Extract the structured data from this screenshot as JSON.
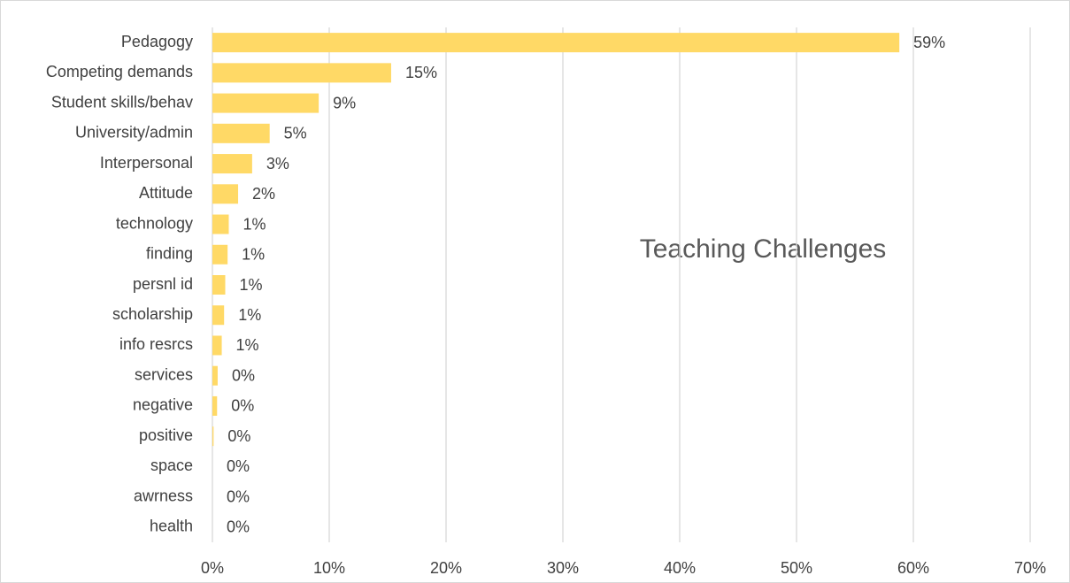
{
  "chart_data": {
    "type": "barh",
    "title": "Teaching Challenges",
    "categories": [
      "Pedagogy",
      "Competing demands",
      "Student skills/behav",
      "University/admin",
      "Interpersonal",
      "Attitude",
      "technology",
      "finding",
      "persnl id",
      "scholarship",
      "info resrcs",
      "services",
      "negative",
      "positive",
      "space",
      "awrness",
      "health"
    ],
    "values": [
      58.8,
      15.3,
      9.1,
      4.9,
      3.4,
      2.2,
      1.4,
      1.3,
      1.1,
      1.0,
      0.8,
      0.45,
      0.4,
      0.1,
      0,
      0,
      0
    ],
    "value_labels": [
      "59%",
      "15%",
      "9%",
      "5%",
      "3%",
      "2%",
      "1%",
      "1%",
      "1%",
      "1%",
      "1%",
      "0%",
      "0%",
      "0%",
      "0%",
      "0%",
      "0%"
    ],
    "color": "#ffd966",
    "xlim": [
      0,
      70
    ],
    "xticks": [
      {
        "value": 0,
        "label": "0%"
      },
      {
        "value": 10,
        "label": "10%"
      },
      {
        "value": 20,
        "label": "20%"
      },
      {
        "value": 30,
        "label": "30%"
      },
      {
        "value": 40,
        "label": "40%"
      },
      {
        "value": 50,
        "label": "50%"
      },
      {
        "value": 60,
        "label": "60%"
      },
      {
        "value": 70,
        "label": "70%"
      }
    ],
    "grid": true
  }
}
